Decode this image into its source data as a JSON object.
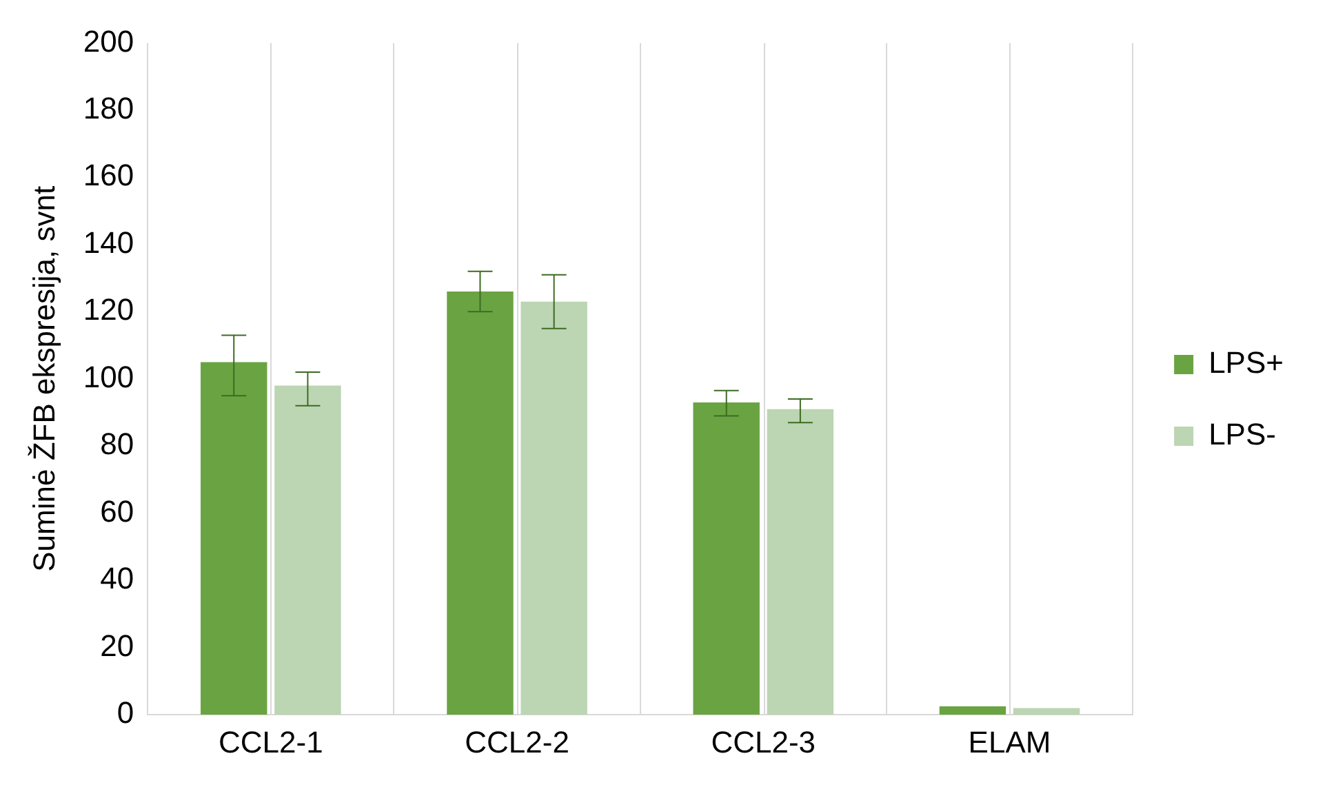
{
  "chart_data": {
    "type": "bar",
    "ylabel": "Suminė ŽFB ekspresija, svnt",
    "categories": [
      "CCL2-1",
      "CCL2-2",
      "CCL2-3",
      "ELAM"
    ],
    "series": [
      {
        "name": "LPS+",
        "color": "#6aa442",
        "values": [
          105,
          126,
          93,
          2.5
        ],
        "errors": [
          [
            95,
            113
          ],
          [
            120,
            132
          ],
          [
            89,
            96.5
          ],
          null
        ]
      },
      {
        "name": "LPS-",
        "color": "#bcd5b3",
        "values": [
          98,
          123,
          91,
          2
        ],
        "errors": [
          [
            92,
            102
          ],
          [
            115,
            131
          ],
          [
            87,
            94
          ],
          null
        ]
      }
    ],
    "ylim": [
      0,
      200
    ],
    "yticks": [
      0,
      20,
      40,
      60,
      80,
      100,
      120,
      140,
      160,
      180,
      200
    ],
    "grid": "x",
    "legend": "right"
  }
}
